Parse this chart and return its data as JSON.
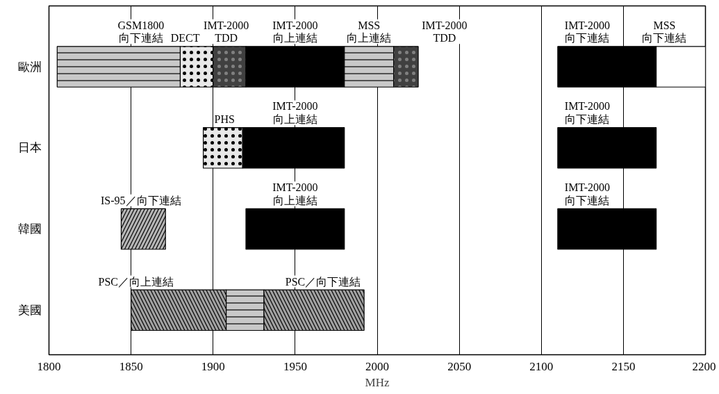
{
  "chart_data": {
    "type": "bar",
    "orientation": "horizontal",
    "xlabel": "MHz",
    "categories": [
      "歐洲",
      "日本",
      "韓國",
      "美國"
    ],
    "series": [
      {
        "base": [
          1805,
          1894,
          1844,
          1850
        ],
        "values": [
          75,
          24,
          27,
          58
        ],
        "colors": [
          "#c8c8c8",
          "#e8e8e8",
          "#b4b4b4",
          "#a0a0a0"
        ]
      },
      {
        "base": [
          1880,
          1918,
          1920,
          1908
        ],
        "values": [
          20,
          62,
          60,
          23
        ],
        "colors": [
          "#e8e8e8",
          "#000000",
          "#000000",
          "#c8c8c8"
        ]
      },
      {
        "base": [
          1900,
          2110,
          2110,
          1931
        ],
        "values": [
          20,
          60,
          60,
          61
        ],
        "colors": [
          "#404040",
          "#000000",
          "#000000",
          "#a0a0a0"
        ]
      },
      {
        "base": [
          1920,
          null,
          null,
          null
        ],
        "values": [
          60,
          null,
          null,
          null
        ],
        "colors": [
          "#000000",
          null,
          null,
          null
        ]
      },
      {
        "base": [
          1980,
          null,
          null,
          null
        ],
        "values": [
          30,
          null,
          null,
          null
        ],
        "colors": [
          "#c8c8c8",
          null,
          null,
          null
        ]
      },
      {
        "base": [
          2010,
          null,
          null,
          null
        ],
        "values": [
          15,
          null,
          null,
          null
        ],
        "colors": [
          "#404040",
          null,
          null,
          null
        ]
      },
      {
        "base": [
          2110,
          null,
          null,
          null
        ],
        "values": [
          60,
          null,
          null,
          null
        ],
        "colors": [
          "#000000",
          null,
          null,
          null
        ]
      },
      {
        "base": [
          2170,
          null,
          null,
          null
        ],
        "values": [
          30,
          null,
          null,
          null
        ],
        "colors": [
          "#ffffff",
          null,
          null,
          null
        ]
      }
    ],
    "xlim": [
      1800,
      2200
    ],
    "xticks": [
      1800,
      1850,
      1900,
      1950,
      2000,
      2050,
      2100,
      2150,
      2200
    ],
    "grid": "x",
    "annotations": [
      "GSM1800\n向下連結",
      "DECT",
      "IMT-2000\nTDD",
      "IMT-2000\n向上連結",
      "MSS\n向上連結",
      "IMT-2000\nTDD",
      "IMT-2000\n向下連結",
      "MSS\n向下連結",
      "PHS",
      "IMT-2000\n向上連結",
      "IMT-2000\n向下連結",
      "IS-95／向下連結",
      "IMT-2000\n向上連結",
      "IMT-2000\n向下連結",
      "PSC／向上連結",
      "PSC／向下連結"
    ]
  }
}
